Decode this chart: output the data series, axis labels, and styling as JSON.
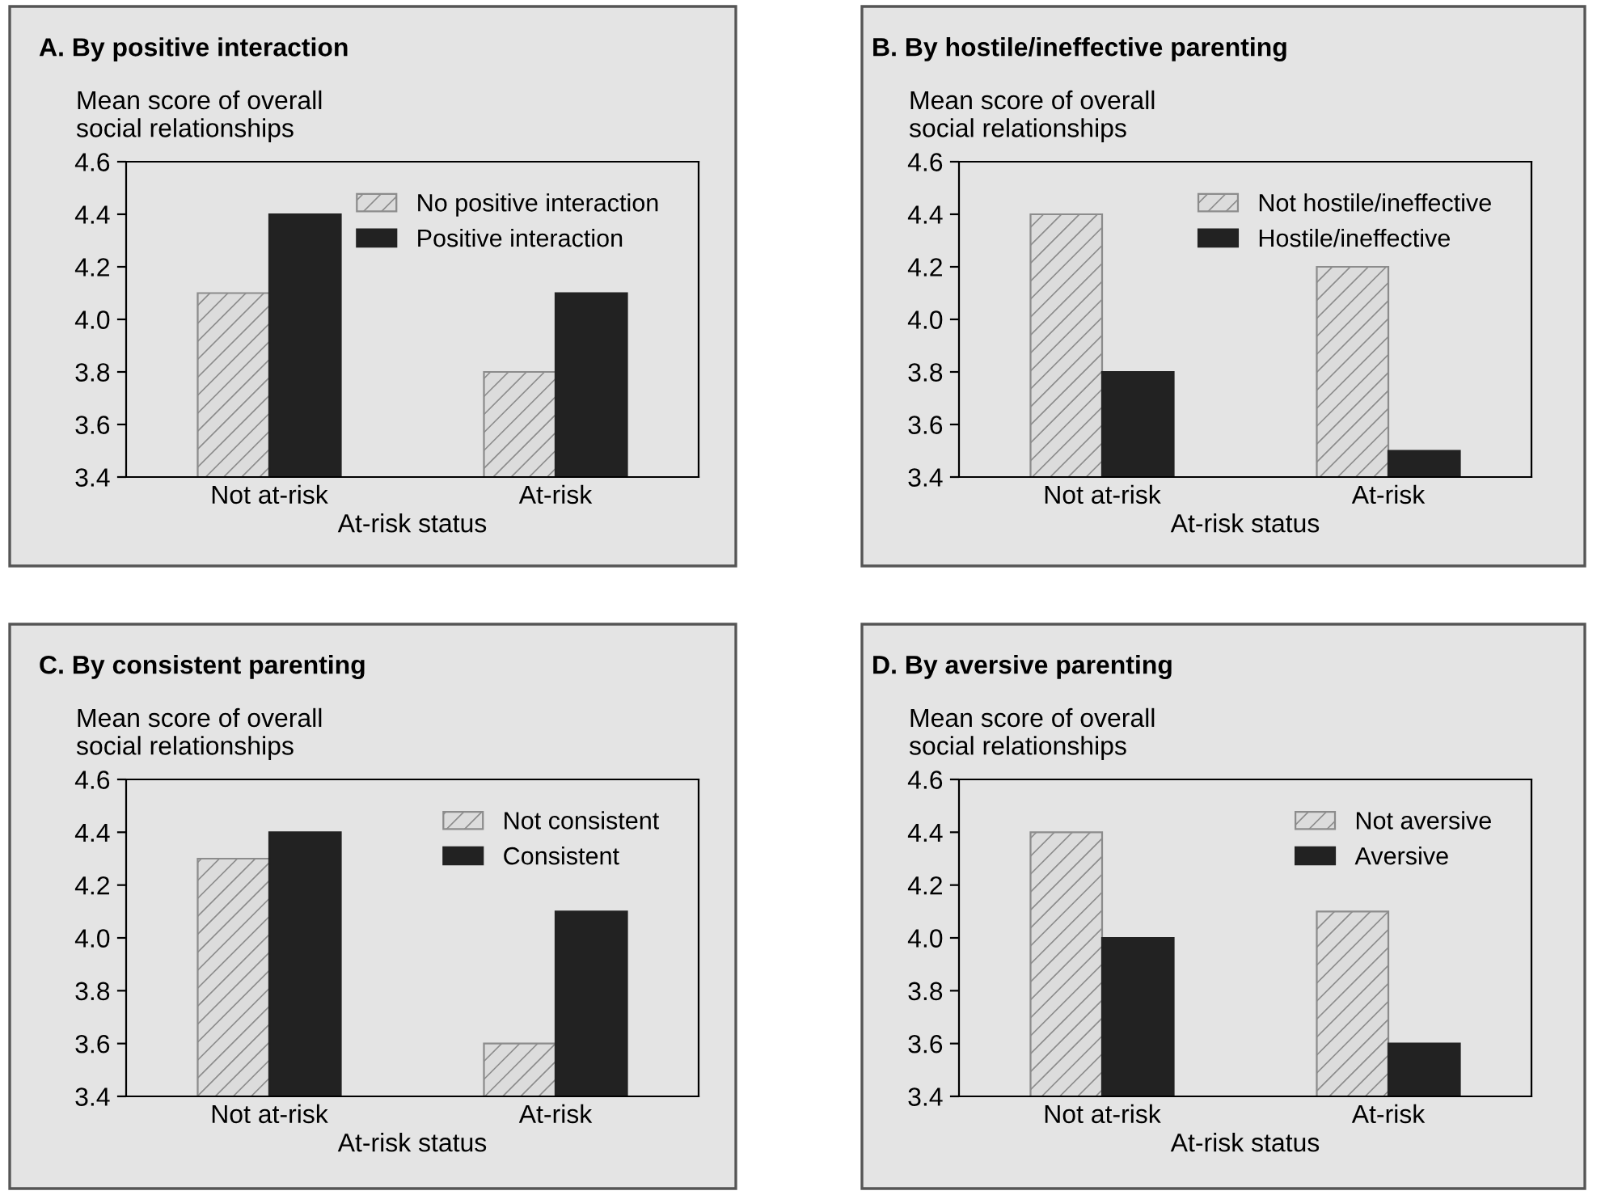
{
  "chart_data": [
    {
      "type": "bar",
      "title": "A. By positive interaction",
      "ylabel": "Mean score of overall\nsocial relationships",
      "xlabel": "At-risk status",
      "categories": [
        "Not at-risk",
        "At-risk"
      ],
      "series": [
        {
          "name": "No positive interaction",
          "color": "#dcdcdc",
          "values": [
            4.1,
            3.8
          ]
        },
        {
          "name": "Positive interaction",
          "color": "#222222",
          "values": [
            4.4,
            4.1
          ]
        }
      ],
      "ylim": [
        3.4,
        4.6
      ],
      "yticks": [
        {
          "value": 3.4,
          "label": "3.4"
        },
        {
          "value": 3.6,
          "label": "3.6"
        },
        {
          "value": 3.8,
          "label": "3.8"
        },
        {
          "value": 4.0,
          "label": "4.0"
        },
        {
          "value": 4.2,
          "label": "4.2"
        },
        {
          "value": 4.4,
          "label": "4.4"
        },
        {
          "value": 4.6,
          "label": "4.6"
        }
      ],
      "legend": "top right"
    },
    {
      "type": "bar",
      "title": "B. By hostile/ineffective parenting",
      "ylabel": "Mean score of overall\nsocial relationships",
      "xlabel": "At-risk status",
      "categories": [
        "Not at-risk",
        "At-risk"
      ],
      "series": [
        {
          "name": "Not hostile/ineffective",
          "color": "#dcdcdc",
          "values": [
            4.4,
            4.2
          ]
        },
        {
          "name": "Hostile/ineffective",
          "color": "#222222",
          "values": [
            3.8,
            3.5
          ]
        }
      ],
      "ylim": [
        3.4,
        4.6
      ],
      "yticks": [
        {
          "value": 3.4,
          "label": "3.4"
        },
        {
          "value": 3.6,
          "label": "3.6"
        },
        {
          "value": 3.8,
          "label": "3.8"
        },
        {
          "value": 4.0,
          "label": "4.0"
        },
        {
          "value": 4.2,
          "label": "4.2"
        },
        {
          "value": 4.4,
          "label": "4.4"
        },
        {
          "value": 4.6,
          "label": "4.6"
        }
      ],
      "legend": "top right"
    },
    {
      "type": "bar",
      "title": "C. By consistent parenting",
      "ylabel": "Mean score of overall\nsocial relationships",
      "xlabel": "At-risk status",
      "categories": [
        "Not at-risk",
        "At-risk"
      ],
      "series": [
        {
          "name": "Not consistent",
          "color": "#dcdcdc",
          "values": [
            4.3,
            3.6
          ]
        },
        {
          "name": "Consistent",
          "color": "#222222",
          "values": [
            4.4,
            4.1
          ]
        }
      ],
      "ylim": [
        3.4,
        4.6
      ],
      "yticks": [
        {
          "value": 3.4,
          "label": "3.4"
        },
        {
          "value": 3.6,
          "label": "3.6"
        },
        {
          "value": 3.8,
          "label": "3.8"
        },
        {
          "value": 4.0,
          "label": "4.0"
        },
        {
          "value": 4.2,
          "label": "4.2"
        },
        {
          "value": 4.4,
          "label": "4.4"
        },
        {
          "value": 4.6,
          "label": "4.6"
        }
      ],
      "legend": "top right"
    },
    {
      "type": "bar",
      "title": "D. By aversive parenting",
      "ylabel": "Mean score of overall\nsocial relationships",
      "xlabel": "At-risk status",
      "categories": [
        "Not at-risk",
        "At-risk"
      ],
      "series": [
        {
          "name": "Not aversive",
          "color": "#dcdcdc",
          "values": [
            4.4,
            4.1
          ]
        },
        {
          "name": "Aversive",
          "color": "#222222",
          "values": [
            4.0,
            3.6
          ]
        }
      ],
      "ylim": [
        3.4,
        4.6
      ],
      "yticks": [
        {
          "value": 3.4,
          "label": "3.4"
        },
        {
          "value": 3.6,
          "label": "3.6"
        },
        {
          "value": 3.8,
          "label": "3.8"
        },
        {
          "value": 4.0,
          "label": "4.0"
        },
        {
          "value": 4.2,
          "label": "4.2"
        },
        {
          "value": 4.4,
          "label": "4.4"
        },
        {
          "value": 4.6,
          "label": "4.6"
        }
      ],
      "legend": "top right"
    }
  ]
}
